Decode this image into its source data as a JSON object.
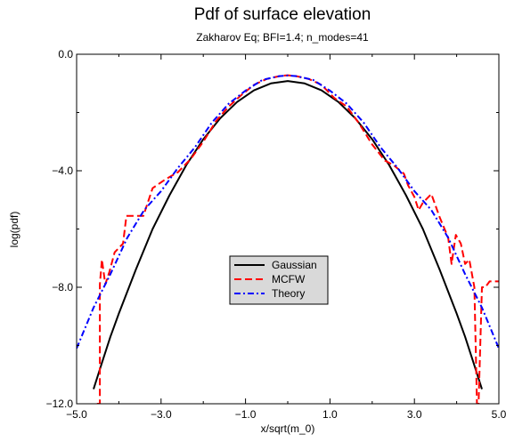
{
  "chart_data": {
    "type": "line",
    "title": "Pdf of surface elevation",
    "subtitle": "Zakharov Eq; BFI=1.4; n_modes=41",
    "xlabel": "x/sqrt(m_0)",
    "ylabel": "log(pdf)",
    "xlim": [
      -5.0,
      5.0
    ],
    "ylim": [
      -12.0,
      0.0
    ],
    "xticks": [
      "−5.0",
      "−3.0",
      "−1.0",
      "1.0",
      "3.0",
      "5.0"
    ],
    "xtick_values": [
      -5,
      -3,
      -1,
      1,
      3,
      5
    ],
    "yticks": [
      "0.0",
      "−4.0",
      "−8.0",
      "−12.0"
    ],
    "ytick_values": [
      0,
      -4,
      -8,
      -12
    ],
    "grid": false,
    "legend": {
      "placement": "center-bottom"
    },
    "colors": {
      "gaussian": "#000000",
      "mcfw": "#ff0000",
      "theory": "#0000ff"
    },
    "series": [
      {
        "name": "Gaussian",
        "style": "solid",
        "color": "#000000",
        "x": [
          -4.6,
          -4.4,
          -4.2,
          -4.0,
          -3.6,
          -3.2,
          -2.8,
          -2.4,
          -2.0,
          -1.6,
          -1.2,
          -0.8,
          -0.4,
          0.0,
          0.4,
          0.8,
          1.2,
          1.6,
          2.0,
          2.4,
          2.8,
          3.2,
          3.6,
          4.0,
          4.2,
          4.4,
          4.6
        ],
        "y": [
          -11.5,
          -10.6,
          -9.7,
          -8.9,
          -7.4,
          -6.0,
          -4.84,
          -3.8,
          -2.92,
          -2.2,
          -1.64,
          -1.24,
          -1.0,
          -0.92,
          -1.0,
          -1.24,
          -1.64,
          -2.2,
          -2.92,
          -3.8,
          -4.84,
          -6.0,
          -7.4,
          -8.9,
          -9.7,
          -10.6,
          -11.5
        ]
      },
      {
        "name": "MCFW",
        "style": "dashed",
        "color": "#ff0000",
        "x": [
          -4.52,
          -4.45,
          -4.45,
          -4.4,
          -4.32,
          -4.22,
          -4.1,
          -3.9,
          -3.82,
          -3.52,
          -3.42,
          -3.2,
          -2.9,
          -2.6,
          -2.3,
          -2.0,
          -1.7,
          -1.4,
          -1.1,
          -0.8,
          -0.5,
          -0.2,
          0.0,
          0.2,
          0.5,
          0.8,
          1.1,
          1.4,
          1.7,
          2.0,
          2.3,
          2.5,
          2.75,
          2.85,
          3.0,
          3.1,
          3.2,
          3.4,
          3.6,
          3.8,
          3.88,
          3.98,
          4.1,
          4.2,
          4.3,
          4.42,
          4.48,
          4.52,
          4.6,
          4.68,
          4.78,
          4.9,
          5.0
        ],
        "y": [
          -12.0,
          -12.0,
          -7.9,
          -7.05,
          -7.9,
          -7.45,
          -6.8,
          -6.5,
          -5.55,
          -5.55,
          -5.55,
          -4.6,
          -4.3,
          -4.05,
          -3.6,
          -3.0,
          -2.3,
          -1.8,
          -1.4,
          -1.05,
          -0.85,
          -0.75,
          -0.72,
          -0.75,
          -0.85,
          -1.05,
          -1.5,
          -1.8,
          -2.4,
          -3.1,
          -3.65,
          -3.8,
          -4.1,
          -4.5,
          -4.9,
          -5.35,
          -5.1,
          -4.8,
          -5.6,
          -6.3,
          -7.2,
          -6.2,
          -6.5,
          -7.2,
          -7.05,
          -8.0,
          -12.0,
          -12.0,
          -8.0,
          -8.0,
          -7.8,
          -7.8,
          -7.8
        ]
      },
      {
        "name": "Theory",
        "style": "dash-dot",
        "color": "#0000ff",
        "x": [
          -5.0,
          -4.6,
          -4.2,
          -3.8,
          -3.4,
          -3.0,
          -2.6,
          -2.2,
          -1.8,
          -1.4,
          -1.0,
          -0.6,
          -0.2,
          0.0,
          0.2,
          0.6,
          1.0,
          1.4,
          1.8,
          2.2,
          2.6,
          3.0,
          3.4,
          3.8,
          4.2,
          4.6,
          5.0
        ],
        "y": [
          -10.1,
          -8.7,
          -7.55,
          -6.3,
          -5.35,
          -4.7,
          -3.9,
          -3.2,
          -2.35,
          -1.7,
          -1.25,
          -0.88,
          -0.75,
          -0.73,
          -0.75,
          -0.88,
          -1.25,
          -1.7,
          -2.35,
          -3.2,
          -3.9,
          -4.7,
          -5.35,
          -6.3,
          -7.55,
          -8.7,
          -10.1
        ]
      }
    ]
  }
}
